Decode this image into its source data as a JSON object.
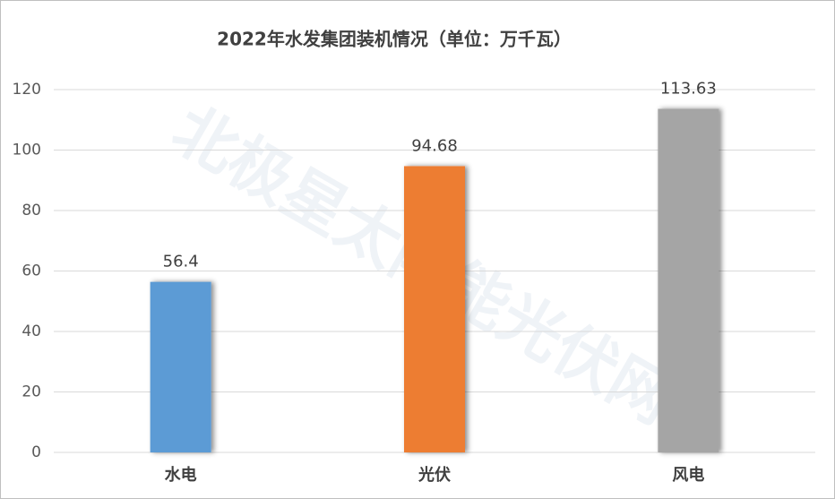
{
  "chart_data": {
    "type": "bar",
    "title": "2022年水发集团装机情况（单位：万千瓦）",
    "categories": [
      "水电",
      "光伏",
      "风电"
    ],
    "values": [
      56.4,
      94.68,
      113.63
    ],
    "colors": [
      "#5b9bd5",
      "#ed7d31",
      "#a5a5a5"
    ],
    "ylim": [
      0,
      120
    ],
    "yticks": [
      0,
      20,
      40,
      60,
      80,
      100,
      120
    ],
    "grid": true,
    "watermark": "北极星太阳能光伏网"
  }
}
